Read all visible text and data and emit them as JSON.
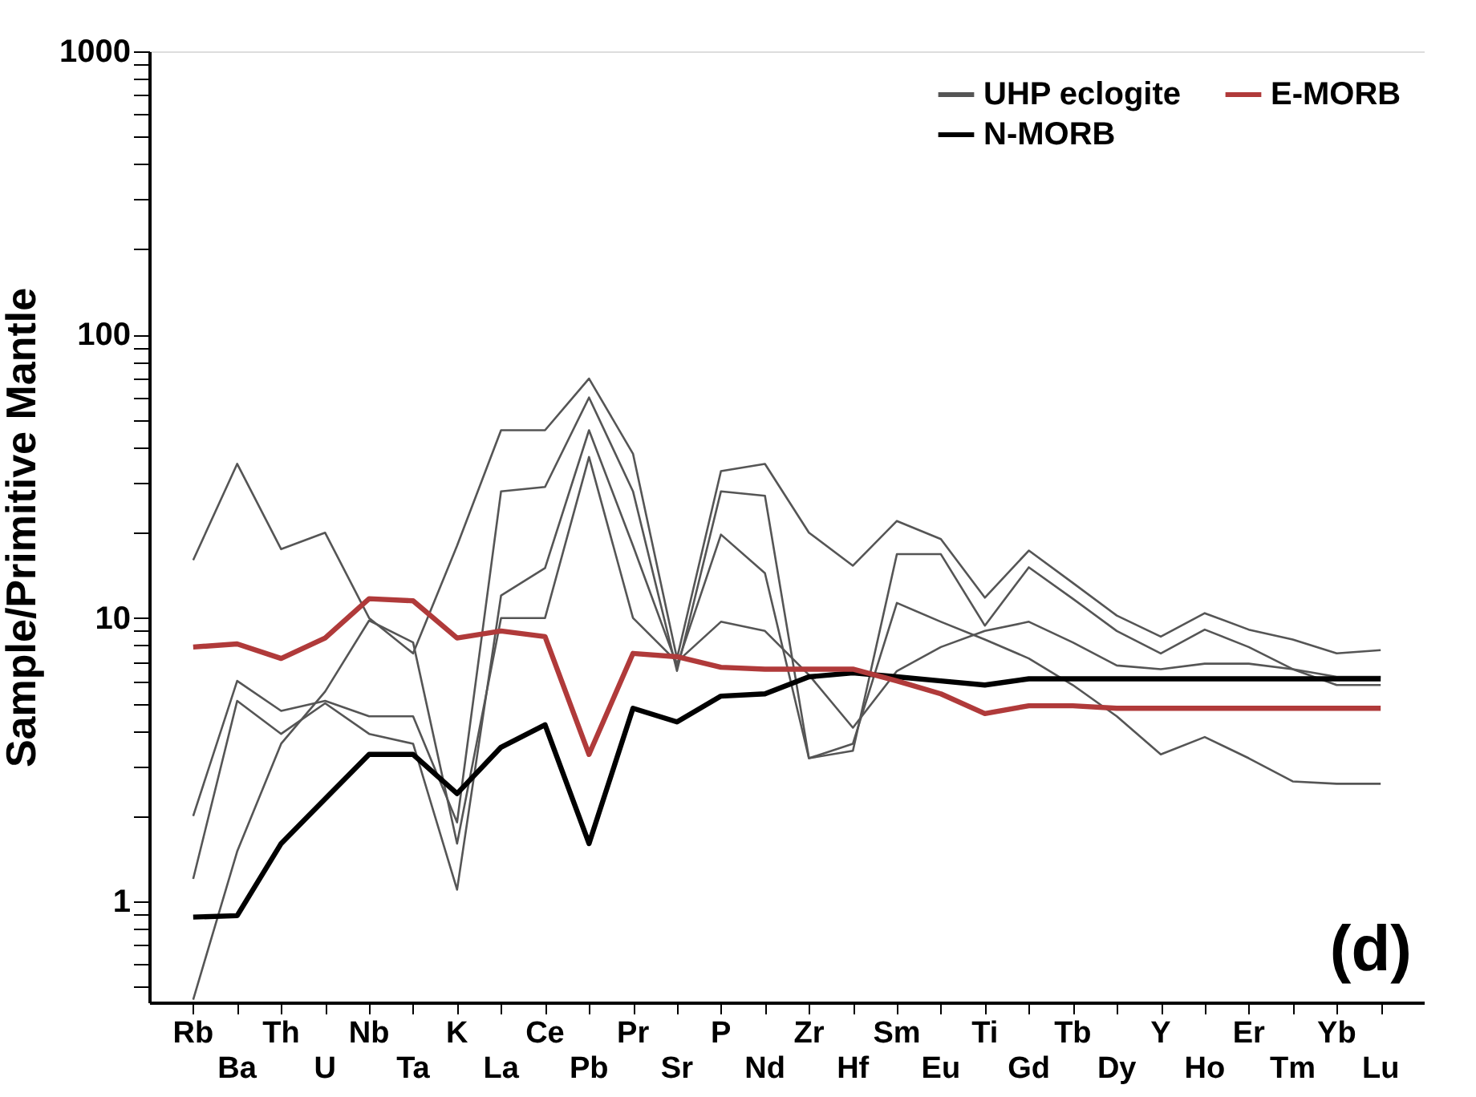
{
  "chart_data": {
    "type": "line",
    "ylabel": "Sample/Primitive Mantle",
    "categories": [
      "Rb",
      "Ba",
      "Th",
      "U",
      "Nb",
      "Ta",
      "K",
      "La",
      "Ce",
      "Pb",
      "Pr",
      "Sr",
      "P",
      "Nd",
      "Zr",
      "Hf",
      "Sm",
      "Eu",
      "Ti",
      "Gd",
      "Tb",
      "Dy",
      "Y",
      "Ho",
      "Er",
      "Tm",
      "Yb",
      "Lu"
    ],
    "series": [
      {
        "name": "UHP eclogite",
        "color": "#555555",
        "values": [
          16,
          35,
          17.5,
          20,
          10,
          7.5,
          18,
          46,
          46,
          70,
          38,
          7.2,
          33,
          35,
          20,
          15.3,
          22,
          19,
          11.8,
          17.3,
          13.3,
          10.2,
          8.6,
          10.4,
          9.1,
          8.4,
          7.5,
          7.7
        ]
      },
      {
        "color": "#555555",
        "values": [
          2.0,
          6.0,
          4.7,
          5.1,
          4.5,
          4.5,
          1.9,
          28,
          29,
          60,
          28,
          6.5,
          28,
          27,
          3.2,
          3.4,
          16.8,
          16.8,
          9.4,
          15.1,
          11.7,
          9.0,
          7.5,
          9.1,
          7.9,
          6.6,
          5.8,
          5.8
        ]
      },
      {
        "color": "#555555",
        "values": [
          1.2,
          5.1,
          3.9,
          5.0,
          3.9,
          3.6,
          1.1,
          12,
          15,
          46,
          18,
          6.8,
          19.7,
          14.4,
          3.2,
          3.6,
          11.3,
          9.7,
          8.4,
          7.2,
          5.8,
          4.5,
          3.3,
          3.8,
          3.2,
          2.65,
          2.6,
          2.6
        ]
      },
      {
        "color": "#555555",
        "values": [
          0.45,
          1.5,
          3.6,
          5.5,
          9.8,
          8.2,
          1.6,
          10,
          10,
          37,
          10,
          7.0,
          9.7,
          9.0,
          6.3,
          4.1,
          6.5,
          7.9,
          9.0,
          9.7,
          8.2,
          6.8,
          6.6,
          6.9,
          6.9,
          6.6,
          6.2,
          6.2
        ]
      },
      {
        "name": "N-MORB",
        "color": "#000000",
        "values": [
          0.88,
          0.89,
          1.6,
          2.3,
          3.3,
          3.3,
          2.4,
          3.5,
          4.2,
          1.6,
          4.8,
          4.3,
          5.3,
          5.4,
          6.2,
          6.4,
          6.2,
          6.0,
          5.8,
          6.1,
          6.1,
          6.1,
          6.1,
          6.1,
          6.1,
          6.1,
          6.1,
          6.1
        ]
      },
      {
        "name": "E-MORB",
        "color": "#b03a3a",
        "values": [
          7.9,
          8.1,
          7.2,
          8.5,
          11.7,
          11.5,
          8.5,
          9.0,
          8.6,
          3.3,
          7.5,
          7.3,
          6.7,
          6.6,
          6.6,
          6.6,
          6.0,
          5.4,
          4.6,
          4.9,
          4.9,
          4.8,
          4.8,
          4.8,
          4.8,
          4.8,
          4.8,
          4.8
        ]
      }
    ],
    "log": true,
    "ylim": [
      0.44,
      1000
    ],
    "yticks": [
      {
        "value": 0.5,
        "label": null
      },
      {
        "value": 0.6,
        "label": null
      },
      {
        "value": 0.7,
        "label": null
      },
      {
        "value": 0.8,
        "label": null
      },
      {
        "value": 0.9,
        "label": null
      },
      1,
      {
        "value": 2,
        "label": null
      },
      {
        "value": 3,
        "label": null
      },
      {
        "value": 4,
        "label": null
      },
      {
        "value": 5,
        "label": null
      },
      {
        "value": 6,
        "label": null
      },
      {
        "value": 7,
        "label": null
      },
      {
        "value": 8,
        "label": null
      },
      {
        "value": 9,
        "label": null
      },
      10,
      {
        "value": 20,
        "label": null
      },
      {
        "value": 30,
        "label": null
      },
      {
        "value": 40,
        "label": null
      },
      {
        "value": 50,
        "label": null
      },
      {
        "value": 60,
        "label": null
      },
      {
        "value": 70,
        "label": null
      },
      {
        "value": 80,
        "label": null
      },
      {
        "value": 90,
        "label": null
      },
      100,
      {
        "value": 200,
        "label": null
      },
      {
        "value": 300,
        "label": null
      },
      {
        "value": 400,
        "label": null
      },
      {
        "value": 500,
        "label": null
      },
      {
        "value": 600,
        "label": null
      },
      {
        "value": 700,
        "label": null
      },
      {
        "value": 800,
        "label": null
      },
      {
        "value": 900,
        "label": null
      },
      1000
    ],
    "grid": false,
    "legend": "top right",
    "marker": "none",
    "line_style": "solid",
    "annotations": [
      "(d)"
    ]
  }
}
